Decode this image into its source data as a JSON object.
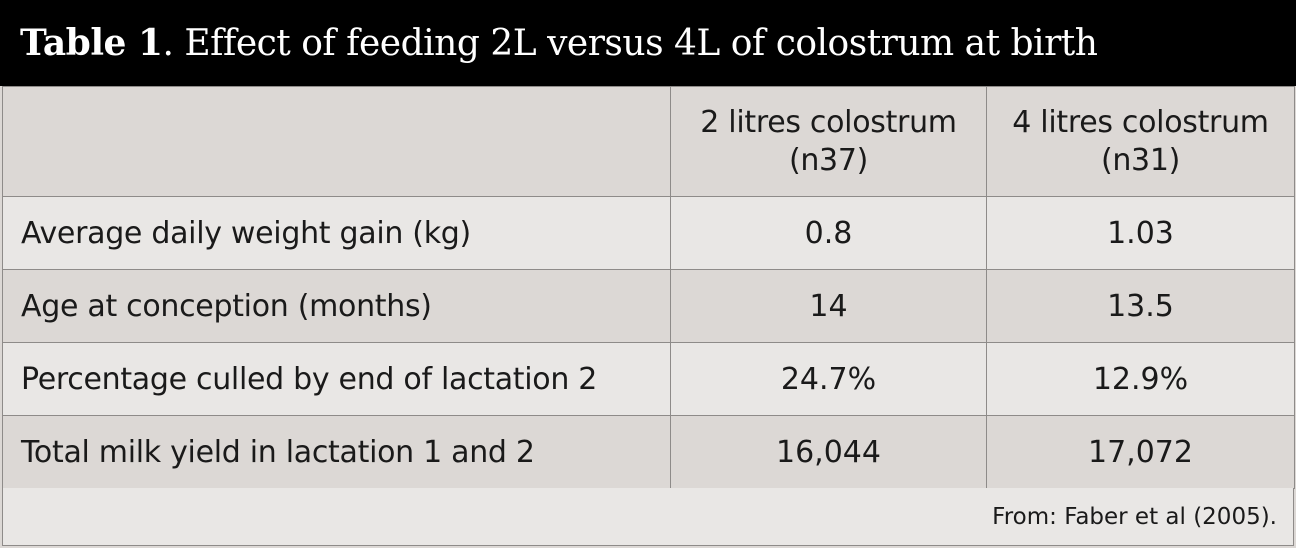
{
  "title": {
    "label": "Table 1",
    "text": ". Effect of feeding 2L versus 4L of colostrum at birth"
  },
  "table": {
    "headers": {
      "corner": "",
      "col1_line1": "2 litres colostrum",
      "col1_line2": "(n37)",
      "col2_line1": "4 litres colostrum",
      "col2_line2": "(n31)"
    },
    "rows": [
      {
        "label": "Average daily weight gain (kg)",
        "two_litres": "0.8",
        "four_litres": "1.03"
      },
      {
        "label": "Age at conception (months)",
        "two_litres": "14",
        "four_litres": "13.5"
      },
      {
        "label": "Percentage culled by end of lactation 2",
        "two_litres": "24.7%",
        "four_litres": "12.9%"
      },
      {
        "label": "Total milk yield in lactation 1 and 2",
        "two_litres": "16,044",
        "four_litres": "17,072"
      }
    ]
  },
  "footer": {
    "source": "From: Faber et al (2005)."
  },
  "colors": {
    "title_background": "#000000",
    "title_text": "#ffffff",
    "row_dark": "#dcd8d5",
    "row_light": "#e9e7e5",
    "border": "#8e8b89"
  }
}
